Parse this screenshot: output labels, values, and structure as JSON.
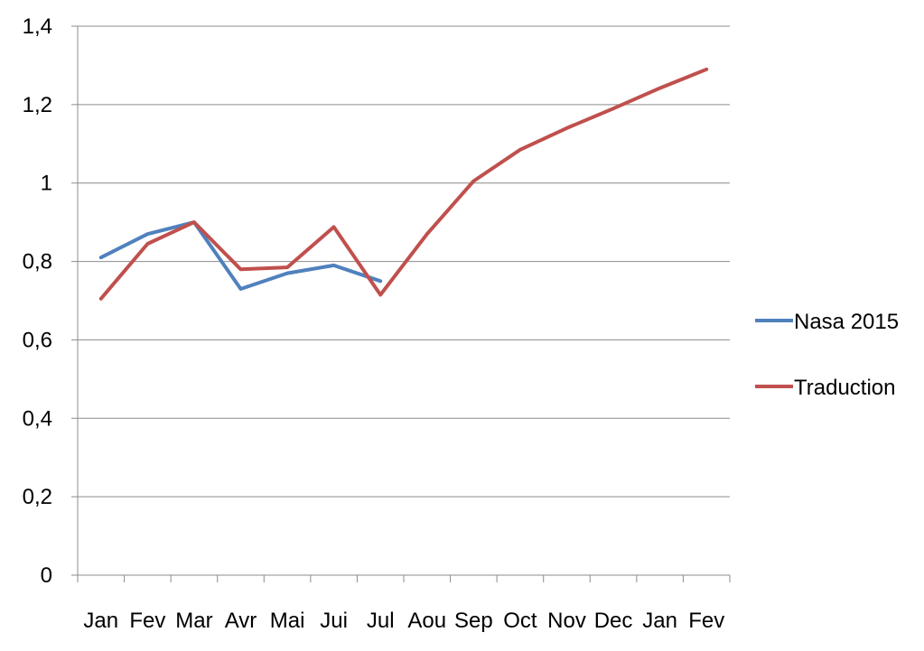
{
  "chart_data": {
    "type": "line",
    "title": "",
    "xlabel": "",
    "ylabel": "",
    "categories": [
      "Jan",
      "Fev",
      "Mar",
      "Avr",
      "Mai",
      "Jui",
      "Jul",
      "Aou",
      "Sep",
      "Oct",
      "Nov",
      "Dec",
      "Jan",
      "Fev"
    ],
    "ylim": [
      0,
      1.4
    ],
    "yticks": [
      0,
      0.2,
      0.4,
      0.6,
      0.8,
      1.0,
      1.2,
      1.4
    ],
    "ytick_labels": [
      "0",
      "0,2",
      "0,4",
      "0,6",
      "0,8",
      "1",
      "1,2",
      "1,4"
    ],
    "grid": true,
    "legend_position": "right",
    "series": [
      {
        "name": "Nasa 2015",
        "color": "#4f81bd",
        "values": [
          0.81,
          0.87,
          0.9,
          0.73,
          0.77,
          0.79,
          0.75,
          null,
          null,
          null,
          null,
          null,
          null,
          null
        ]
      },
      {
        "name": "Traduction",
        "color": "#c0504d",
        "values": [
          0.705,
          0.845,
          0.9,
          0.78,
          0.785,
          0.888,
          0.715,
          0.87,
          1.005,
          1.085,
          1.14,
          1.19,
          1.242,
          1.29
        ]
      }
    ]
  }
}
